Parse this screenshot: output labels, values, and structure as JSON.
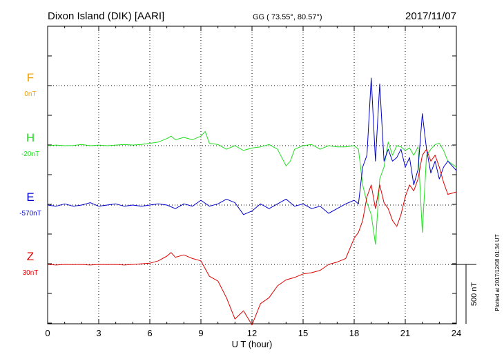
{
  "header": {
    "station": "Dixon Island (DIK)  [AARI]",
    "coords": "GG ( 73.55°,  80.57°)",
    "date": "2017/11/07"
  },
  "plot_note": "Plotted at 2017/12/08 01:34 UT",
  "scale_label": "500 nT",
  "colors": {
    "F": "#f0a000",
    "H": "#22dd22",
    "E": "#0000cc",
    "Z": "#dd0000",
    "axis": "#000000",
    "grid": "#000000"
  },
  "chart_data": {
    "type": "line",
    "title": "Dixon Island (DIK)  [AARI]",
    "xlabel": "U T (hour)",
    "ylabel": "",
    "xlim": [
      0,
      24
    ],
    "xticks": [
      "0",
      "3",
      "6",
      "9",
      "12",
      "15",
      "18",
      "21",
      "24"
    ],
    "grid": true,
    "series": [
      {
        "name": "F",
        "baseline_label": "0nT",
        "x": [],
        "y": []
      },
      {
        "name": "H",
        "baseline_label": "-20nT",
        "x": [
          0,
          0.5,
          1,
          1.5,
          2,
          2.5,
          3,
          3.5,
          4,
          4.5,
          5,
          5.5,
          6,
          6.5,
          7,
          7.25,
          7.5,
          8,
          8.5,
          9,
          9.25,
          9.5,
          10,
          10.5,
          11,
          11.5,
          12,
          12.5,
          13,
          13.5,
          14,
          14.25,
          14.5,
          15,
          15.5,
          16,
          16.5,
          17,
          17.5,
          18,
          18.25,
          18.5,
          18.75,
          19,
          19.25,
          19.5,
          19.75,
          20,
          20.25,
          20.5,
          20.75,
          21,
          21.25,
          21.5,
          21.75,
          22,
          22.25,
          22.5,
          22.75,
          23,
          23.25,
          23.5,
          24
        ],
        "y": [
          -20,
          -15,
          -20,
          -18,
          -10,
          -20,
          -15,
          -20,
          -15,
          -10,
          -15,
          -10,
          0,
          10,
          40,
          60,
          30,
          50,
          30,
          60,
          100,
          0,
          -10,
          -50,
          -20,
          -60,
          -40,
          -30,
          -10,
          -50,
          -190,
          -150,
          -50,
          -20,
          -10,
          -50,
          -20,
          -30,
          -30,
          -20,
          -50,
          -350,
          -500,
          -600,
          -850,
          -300,
          -200,
          10,
          -100,
          -20,
          -30,
          -60,
          -40,
          -100,
          -30,
          -750,
          -100,
          -50,
          -10,
          0,
          -60,
          -150,
          -200
        ]
      },
      {
        "name": "E",
        "baseline_label": "-570nT",
        "x": [
          0,
          0.5,
          1,
          1.5,
          2,
          2.5,
          3,
          3.5,
          4,
          4.5,
          5,
          5.5,
          6,
          6.5,
          7,
          7.5,
          8,
          8.5,
          9,
          9.5,
          10,
          10.5,
          11,
          11.5,
          12,
          12.5,
          13,
          13.5,
          14,
          14.5,
          15,
          15.5,
          16,
          16.5,
          17,
          17.5,
          18,
          18.25,
          18.5,
          18.75,
          19,
          19.25,
          19.5,
          19.75,
          20,
          20.25,
          20.5,
          20.75,
          21,
          21.25,
          21.5,
          21.75,
          22,
          22.25,
          22.5,
          22.75,
          23,
          23.25,
          23.5,
          24
        ],
        "y": [
          -570,
          -580,
          -560,
          -580,
          -570,
          -550,
          -580,
          -570,
          -560,
          -580,
          -570,
          -580,
          -570,
          -560,
          -570,
          -600,
          -560,
          -580,
          -530,
          -580,
          -560,
          -520,
          -550,
          -650,
          -620,
          -560,
          -600,
          -560,
          -520,
          -580,
          -560,
          -600,
          -580,
          -640,
          -600,
          -560,
          -530,
          -560,
          -250,
          -150,
          500,
          -200,
          450,
          -200,
          -100,
          -200,
          -170,
          -100,
          -250,
          -170,
          -400,
          -270,
          200,
          -100,
          -300,
          -200,
          -350,
          -250,
          -200,
          -280
        ]
      },
      {
        "name": "Z",
        "baseline_label": "30nT",
        "x": [
          0,
          0.5,
          1,
          1.5,
          2,
          2.5,
          3,
          3.5,
          4,
          4.5,
          5,
          5.5,
          6,
          6.5,
          7,
          7.25,
          7.5,
          8,
          8.5,
          9,
          9.5,
          10,
          10.5,
          11,
          11.5,
          12,
          12.5,
          13,
          13.5,
          14,
          14.5,
          15,
          15.5,
          16,
          16.5,
          17,
          17.5,
          18,
          18.25,
          18.5,
          18.75,
          19,
          19.25,
          19.5,
          19.75,
          20,
          20.25,
          20.5,
          20.75,
          21,
          21.25,
          21.5,
          21.75,
          22,
          22.25,
          22.5,
          22.75,
          23,
          23.25,
          23.5,
          24
        ],
        "y": [
          30,
          25,
          30,
          28,
          30,
          25,
          30,
          28,
          30,
          25,
          30,
          35,
          40,
          60,
          100,
          130,
          90,
          110,
          80,
          60,
          -70,
          -110,
          -250,
          -430,
          -360,
          -480,
          -300,
          -250,
          -150,
          -100,
          -80,
          -50,
          -40,
          -20,
          30,
          50,
          80,
          250,
          300,
          400,
          600,
          700,
          500,
          700,
          550,
          500,
          400,
          350,
          450,
          600,
          700,
          650,
          750,
          950,
          1000,
          900,
          950,
          850,
          720,
          620,
          640
        ]
      }
    ]
  }
}
